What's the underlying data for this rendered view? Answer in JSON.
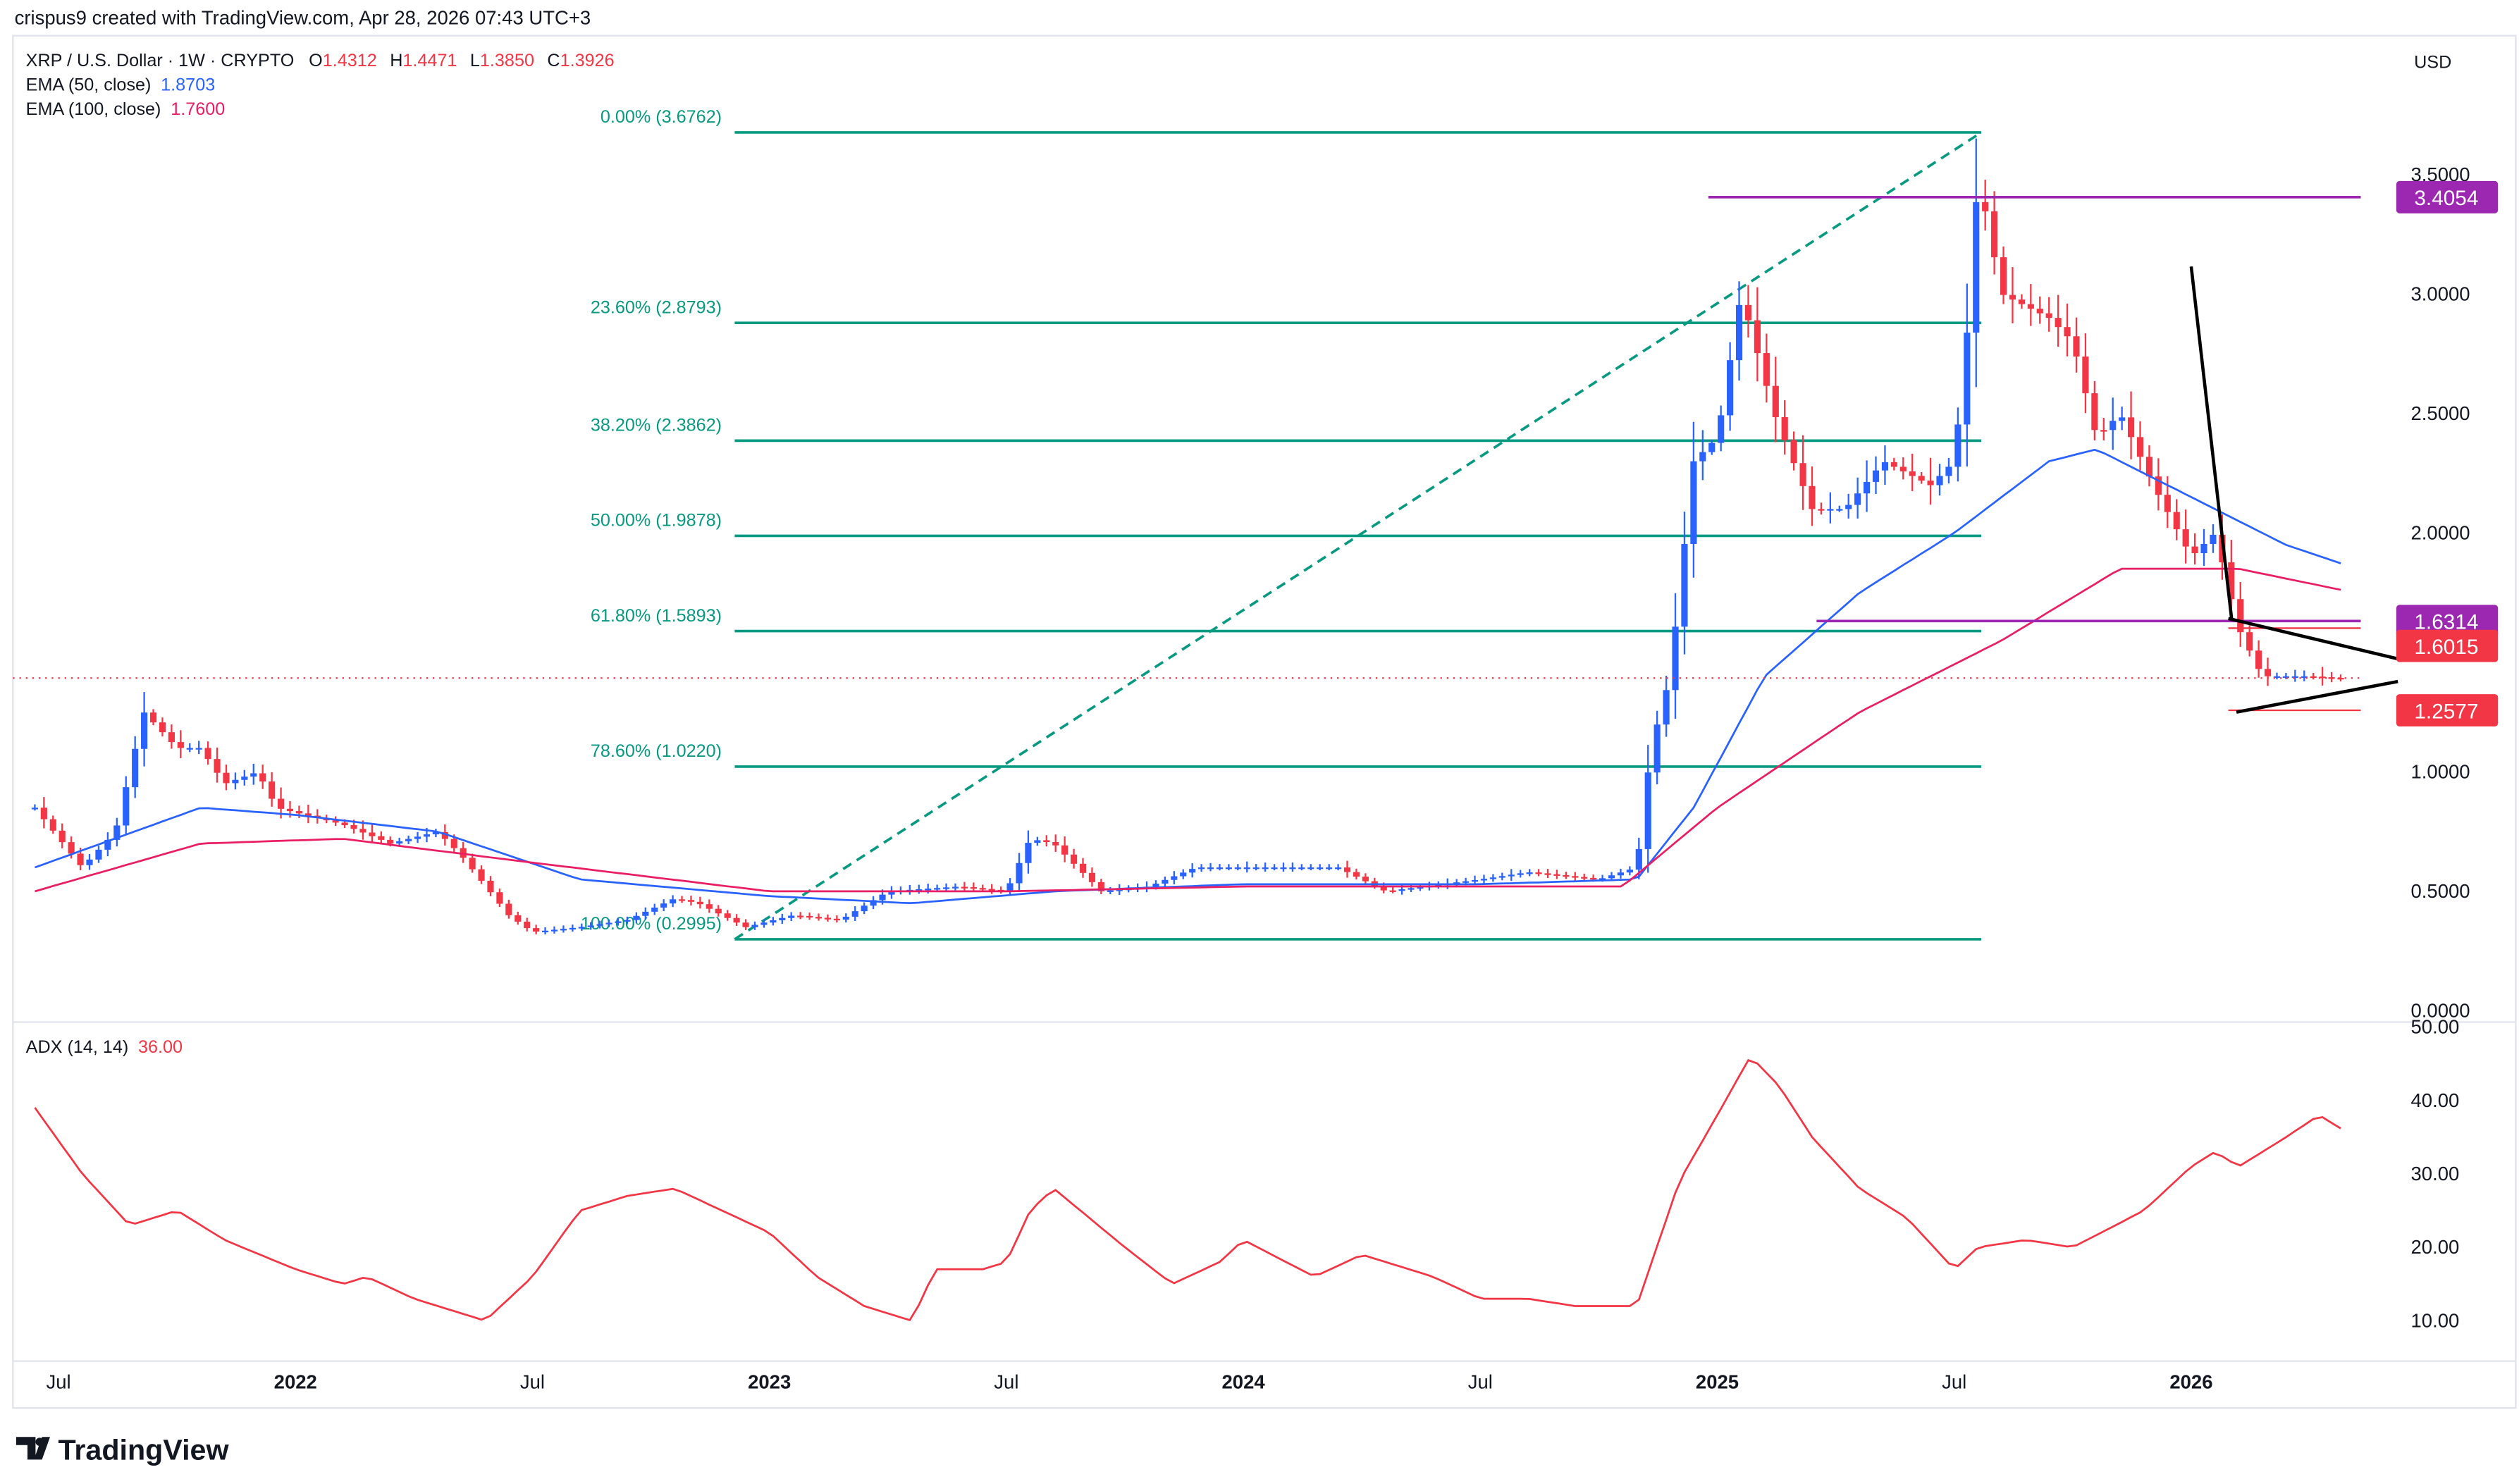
{
  "header": {
    "credit": "crispus9 created with TradingView.com, Apr 28, 2026 07:43 UTC+3"
  },
  "legend": {
    "symbol": "XRP / U.S. Dollar · 1W · CRYPTO",
    "o_label": "O",
    "o": "1.4312",
    "h_label": "H",
    "h": "1.4471",
    "l_label": "L",
    "l": "1.3850",
    "c_label": "C",
    "c": "1.3926",
    "ema50_label": "EMA (50, close)",
    "ema50": "1.8703",
    "ema100_label": "EMA (100, close)",
    "ema100": "1.7600"
  },
  "currency": "USD",
  "adx": {
    "label": "ADX (14, 14)",
    "value": "36.00"
  },
  "price_axis": [
    "3.5000",
    "3.0000",
    "2.5000",
    "2.0000",
    "1.0000",
    "0.5000",
    "0.0000"
  ],
  "adx_axis": [
    "50.00",
    "40.00",
    "30.00",
    "20.00",
    "10.00"
  ],
  "time_axis": [
    {
      "label": "Jul",
      "t": 2021.5
    },
    {
      "label": "2022",
      "t": 2022.0
    },
    {
      "label": "Jul",
      "t": 2022.5
    },
    {
      "label": "2023",
      "t": 2023.0
    },
    {
      "label": "Jul",
      "t": 2023.5
    },
    {
      "label": "2024",
      "t": 2024.0
    },
    {
      "label": "Jul",
      "t": 2024.5
    },
    {
      "label": "2025",
      "t": 2025.0
    },
    {
      "label": "Jul",
      "t": 2025.5
    },
    {
      "label": "2026",
      "t": 2026.0
    }
  ],
  "fib_levels": [
    {
      "label": "0.00% (3.6762)",
      "price": 3.6762
    },
    {
      "label": "23.60% (2.8793)",
      "price": 2.8793
    },
    {
      "label": "38.20% (2.3862)",
      "price": 2.3862
    },
    {
      "label": "50.00% (1.9878)",
      "price": 1.9878
    },
    {
      "label": "61.80% (1.5893)",
      "price": 1.5893
    },
    {
      "label": "78.60% (1.0220)",
      "price": 1.022
    },
    {
      "label": "100.00% (0.2995)",
      "price": 0.2995
    }
  ],
  "price_tags": [
    {
      "value": "3.4054",
      "price": 3.4054,
      "color": "#9c27b0"
    },
    {
      "value": "1.6314",
      "price": 1.6314,
      "color": "#9c27b0"
    },
    {
      "value": "1.6015",
      "price": 1.6015,
      "color": "#f23645"
    },
    {
      "value": "1.2577",
      "price": 1.2577,
      "color": "#f23645"
    }
  ],
  "colors": {
    "up": "#2962ff",
    "down": "#f23645",
    "ema50": "#2962ff",
    "ema100": "#e91e63",
    "fib": "#089981",
    "level": "#9c27b0",
    "adx": "#f23645"
  },
  "logo": "TradingView",
  "chart_data": {
    "type": "candlestick",
    "interval": "1W",
    "ylim": [
      0,
      3.8
    ],
    "price_close": [
      [
        2021.45,
        0.85
      ],
      [
        2021.55,
        0.6
      ],
      [
        2021.62,
        0.75
      ],
      [
        2021.68,
        1.25
      ],
      [
        2021.75,
        1.1
      ],
      [
        2021.8,
        1.1
      ],
      [
        2021.85,
        0.95
      ],
      [
        2021.92,
        1.0
      ],
      [
        2021.96,
        0.85
      ],
      [
        2022.0,
        0.83
      ],
      [
        2022.1,
        0.78
      ],
      [
        2022.2,
        0.7
      ],
      [
        2022.3,
        0.75
      ],
      [
        2022.35,
        0.65
      ],
      [
        2022.45,
        0.4
      ],
      [
        2022.5,
        0.33
      ],
      [
        2022.6,
        0.35
      ],
      [
        2022.7,
        0.38
      ],
      [
        2022.8,
        0.47
      ],
      [
        2022.85,
        0.45
      ],
      [
        2022.95,
        0.35
      ],
      [
        2023.05,
        0.4
      ],
      [
        2023.15,
        0.38
      ],
      [
        2023.25,
        0.5
      ],
      [
        2023.4,
        0.52
      ],
      [
        2023.5,
        0.5
      ],
      [
        2023.55,
        0.72
      ],
      [
        2023.6,
        0.7
      ],
      [
        2023.7,
        0.5
      ],
      [
        2023.8,
        0.52
      ],
      [
        2023.9,
        0.6
      ],
      [
        2024.0,
        0.6
      ],
      [
        2024.2,
        0.6
      ],
      [
        2024.3,
        0.5
      ],
      [
        2024.5,
        0.55
      ],
      [
        2024.6,
        0.58
      ],
      [
        2024.75,
        0.55
      ],
      [
        2024.83,
        0.6
      ],
      [
        2024.86,
        1.1
      ],
      [
        2024.9,
        1.4
      ],
      [
        2024.95,
        2.3
      ],
      [
        2025.0,
        2.4
      ],
      [
        2025.05,
        3.0
      ],
      [
        2025.12,
        2.5
      ],
      [
        2025.2,
        2.1
      ],
      [
        2025.27,
        2.1
      ],
      [
        2025.35,
        2.3
      ],
      [
        2025.45,
        2.2
      ],
      [
        2025.5,
        2.3
      ],
      [
        2025.53,
        2.9
      ],
      [
        2025.55,
        3.5
      ],
      [
        2025.6,
        3.0
      ],
      [
        2025.7,
        2.9
      ],
      [
        2025.75,
        2.8
      ],
      [
        2025.8,
        2.4
      ],
      [
        2025.85,
        2.5
      ],
      [
        2025.92,
        2.2
      ],
      [
        2026.0,
        1.9
      ],
      [
        2026.05,
        2.0
      ],
      [
        2026.1,
        1.6
      ],
      [
        2026.15,
        1.4
      ],
      [
        2026.25,
        1.4
      ],
      [
        2026.32,
        1.39
      ]
    ],
    "ema50": [
      [
        2021.45,
        0.6
      ],
      [
        2021.8,
        0.85
      ],
      [
        2022.0,
        0.82
      ],
      [
        2022.3,
        0.75
      ],
      [
        2022.6,
        0.55
      ],
      [
        2023.0,
        0.48
      ],
      [
        2023.3,
        0.45
      ],
      [
        2023.6,
        0.5
      ],
      [
        2024.0,
        0.53
      ],
      [
        2024.5,
        0.53
      ],
      [
        2024.83,
        0.55
      ],
      [
        2024.95,
        0.85
      ],
      [
        2025.1,
        1.4
      ],
      [
        2025.3,
        1.75
      ],
      [
        2025.5,
        2.0
      ],
      [
        2025.7,
        2.3
      ],
      [
        2025.8,
        2.35
      ],
      [
        2026.0,
        2.15
      ],
      [
        2026.2,
        1.95
      ],
      [
        2026.32,
        1.87
      ]
    ],
    "ema100": [
      [
        2021.45,
        0.5
      ],
      [
        2021.8,
        0.7
      ],
      [
        2022.1,
        0.72
      ],
      [
        2022.5,
        0.62
      ],
      [
        2023.0,
        0.5
      ],
      [
        2023.5,
        0.5
      ],
      [
        2024.0,
        0.52
      ],
      [
        2024.8,
        0.52
      ],
      [
        2025.0,
        0.85
      ],
      [
        2025.3,
        1.25
      ],
      [
        2025.6,
        1.55
      ],
      [
        2025.85,
        1.85
      ],
      [
        2026.1,
        1.85
      ],
      [
        2026.32,
        1.76
      ]
    ],
    "adx_values": [
      [
        2021.45,
        39
      ],
      [
        2021.55,
        30
      ],
      [
        2021.65,
        23
      ],
      [
        2021.75,
        25
      ],
      [
        2021.85,
        21
      ],
      [
        2022.0,
        17
      ],
      [
        2022.1,
        15
      ],
      [
        2022.15,
        16
      ],
      [
        2022.25,
        13
      ],
      [
        2022.4,
        10
      ],
      [
        2022.5,
        16
      ],
      [
        2022.6,
        25
      ],
      [
        2022.7,
        27
      ],
      [
        2022.8,
        28
      ],
      [
        2022.9,
        25
      ],
      [
        2023.0,
        22
      ],
      [
        2023.1,
        16
      ],
      [
        2023.2,
        12
      ],
      [
        2023.3,
        10
      ],
      [
        2023.35,
        17
      ],
      [
        2023.45,
        17
      ],
      [
        2023.5,
        18
      ],
      [
        2023.55,
        25
      ],
      [
        2023.6,
        28
      ],
      [
        2023.75,
        20
      ],
      [
        2023.85,
        15
      ],
      [
        2023.95,
        18
      ],
      [
        2024.0,
        21
      ],
      [
        2024.15,
        16
      ],
      [
        2024.25,
        19
      ],
      [
        2024.4,
        16
      ],
      [
        2024.5,
        13
      ],
      [
        2024.6,
        13
      ],
      [
        2024.7,
        12
      ],
      [
        2024.83,
        12
      ],
      [
        2024.92,
        29
      ],
      [
        2025.0,
        38
      ],
      [
        2025.07,
        46
      ],
      [
        2025.13,
        42
      ],
      [
        2025.2,
        35
      ],
      [
        2025.3,
        28
      ],
      [
        2025.4,
        24
      ],
      [
        2025.5,
        17
      ],
      [
        2025.55,
        20
      ],
      [
        2025.65,
        21
      ],
      [
        2025.75,
        20
      ],
      [
        2025.9,
        25
      ],
      [
        2026.0,
        31
      ],
      [
        2026.05,
        33
      ],
      [
        2026.1,
        31
      ],
      [
        2026.2,
        35
      ],
      [
        2026.27,
        38
      ],
      [
        2026.32,
        36
      ]
    ]
  }
}
